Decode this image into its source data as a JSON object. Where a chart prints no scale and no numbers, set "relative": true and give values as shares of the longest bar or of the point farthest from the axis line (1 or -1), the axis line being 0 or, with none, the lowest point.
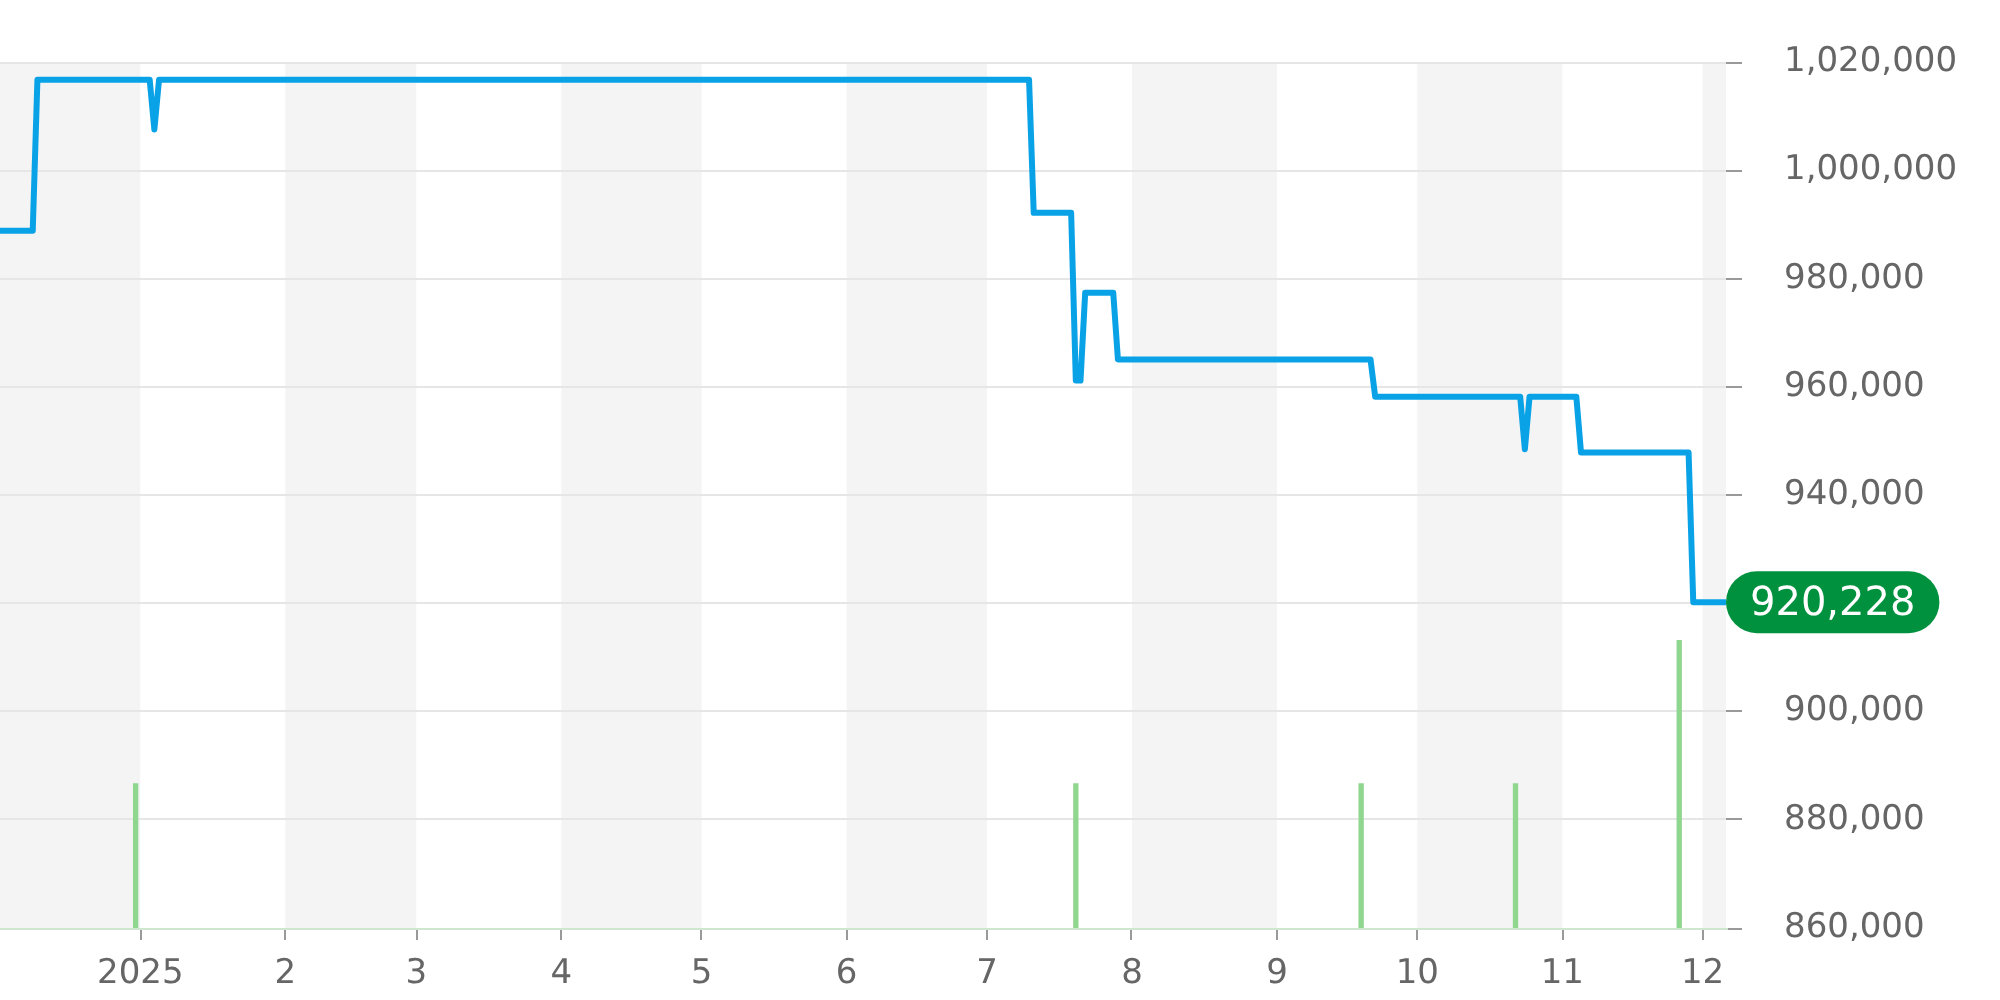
{
  "chart_data": [
    {
      "type": "line",
      "x": [
        "2024-12-02",
        "2024-12-09",
        "2024-12-10",
        "2025-01-03",
        "2025-01-04",
        "2025-01-05",
        "2025-07-10",
        "2025-07-11",
        "2025-07-19",
        "2025-07-20",
        "2025-07-21",
        "2025-07-22",
        "2025-07-28",
        "2025-07-29",
        "2025-09-21",
        "2025-09-22",
        "2025-10-23",
        "2025-10-24",
        "2025-10-25",
        "2025-11-04",
        "2025-11-05",
        "2025-11-28",
        "2025-11-29",
        "2025-12-06"
      ],
      "values": [
        988900,
        988900,
        1016800,
        1016800,
        1007600,
        1016800,
        1016800,
        992200,
        992200,
        961200,
        961200,
        977400,
        977400,
        965100,
        965100,
        958200,
        958200,
        948500,
        958200,
        958200,
        947900,
        947900,
        920228,
        920228
      ],
      "color": "#0aa2e6",
      "value_labels": [
        null,
        null,
        null,
        null,
        null,
        null,
        null,
        null,
        null,
        null,
        null,
        null,
        null,
        null,
        null,
        null,
        null,
        null,
        null,
        null,
        null,
        null,
        null,
        "920,228"
      ],
      "xlim": [
        "2024-12-02",
        "2025-12-06"
      ],
      "xticks": [
        {
          "value": "2025-01-01",
          "label": "2025"
        },
        {
          "value": "2025-02-01",
          "label": "2"
        },
        {
          "value": "2025-03-01",
          "label": "3"
        },
        {
          "value": "2025-04-01",
          "label": "4"
        },
        {
          "value": "2025-05-01",
          "label": "5"
        },
        {
          "value": "2025-06-01",
          "label": "6"
        },
        {
          "value": "2025-07-01",
          "label": "7"
        },
        {
          "value": "2025-08-01",
          "label": "8"
        },
        {
          "value": "2025-09-01",
          "label": "9"
        },
        {
          "value": "2025-10-01",
          "label": "10"
        },
        {
          "value": "2025-11-01",
          "label": "11"
        },
        {
          "value": "2025-12-01",
          "label": "12"
        }
      ],
      "ylim": [
        860000,
        1020000
      ],
      "yticks": [
        {
          "value": 860000,
          "label": "860,000"
        },
        {
          "value": 880000,
          "label": "880,000"
        },
        {
          "value": 900000,
          "label": "900,000"
        },
        {
          "value": 920000,
          "label": null
        },
        {
          "value": 940000,
          "label": "940,000"
        },
        {
          "value": 960000,
          "label": "960,000"
        },
        {
          "value": 980000,
          "label": "980,000"
        },
        {
          "value": 1000000,
          "label": "1,000,000"
        },
        {
          "value": 1020000,
          "label": "1,020,000"
        }
      ],
      "grid": "y",
      "bands": [
        {
          "axis": "x",
          "from": "2024-12-02",
          "to": "2025-01-01",
          "color": "#f4f4f4"
        },
        {
          "axis": "x",
          "from": "2025-02-01",
          "to": "2025-03-01",
          "color": "#f4f4f4"
        },
        {
          "axis": "x",
          "from": "2025-04-01",
          "to": "2025-05-01",
          "color": "#f4f4f4"
        },
        {
          "axis": "x",
          "from": "2025-06-01",
          "to": "2025-07-01",
          "color": "#f4f4f4"
        },
        {
          "axis": "x",
          "from": "2025-08-01",
          "to": "2025-09-01",
          "color": "#f4f4f4"
        },
        {
          "axis": "x",
          "from": "2025-10-01",
          "to": "2025-11-01",
          "color": "#f4f4f4"
        },
        {
          "axis": "x",
          "from": "2025-12-01",
          "to": "2025-12-06",
          "color": "#f4f4f4"
        }
      ]
    },
    {
      "type": "bar",
      "relative": true,
      "x": [
        "2024-12-31",
        "2025-07-20",
        "2025-09-19",
        "2025-10-22",
        "2025-11-26"
      ],
      "values": [
        0.5,
        0.5,
        0.5,
        0.5,
        1
      ],
      "color": "#8fd68f",
      "xlim": [
        "2024-12-02",
        "2025-12-06"
      ],
      "tick_labels": false
    }
  ]
}
